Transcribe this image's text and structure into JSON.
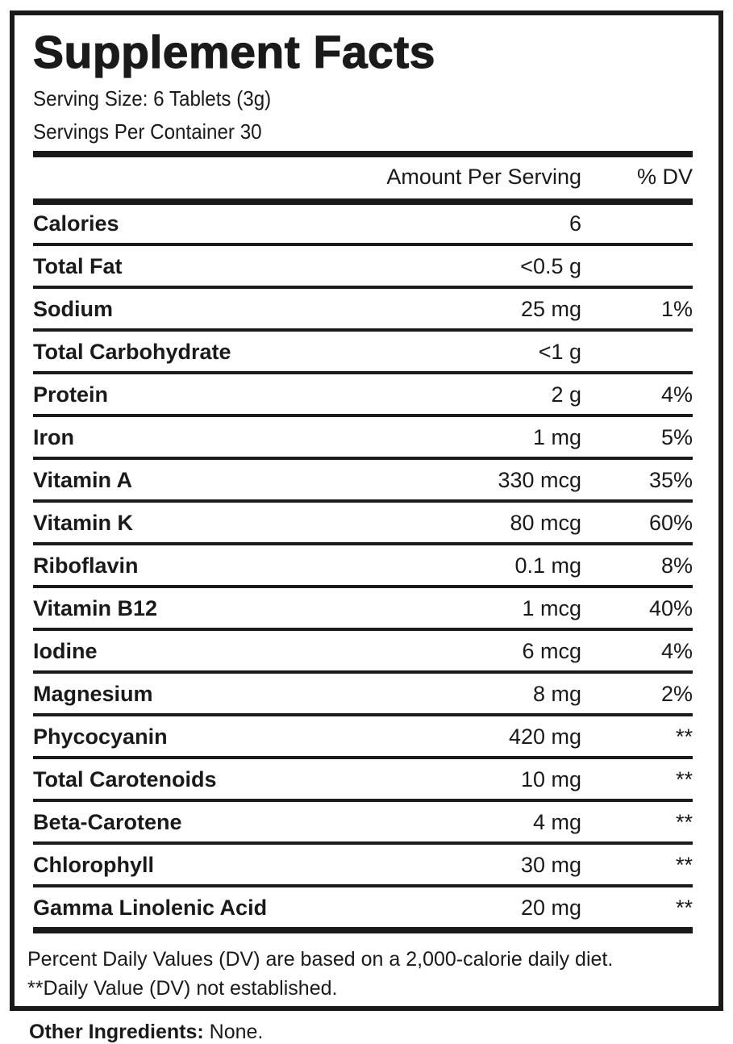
{
  "title": "Supplement Facts",
  "serving_size": "Serving Size: 6 Tablets (3g)",
  "servings_per_container": "Servings Per Container 30",
  "header": {
    "amount": "Amount Per Serving",
    "dv": "% DV"
  },
  "rows": [
    {
      "name": "Calories",
      "amount": "6",
      "dv": ""
    },
    {
      "name": "Total Fat",
      "amount": "<0.5 g",
      "dv": ""
    },
    {
      "name": "Sodium",
      "amount": "25 mg",
      "dv": "1%"
    },
    {
      "name": "Total Carbohydrate",
      "amount": "<1 g",
      "dv": ""
    },
    {
      "name": "Protein",
      "amount": "2 g",
      "dv": "4%"
    },
    {
      "name": "Iron",
      "amount": "1 mg",
      "dv": "5%"
    },
    {
      "name": "Vitamin A",
      "amount": "330 mcg",
      "dv": "35%"
    },
    {
      "name": "Vitamin K",
      "amount": "80 mcg",
      "dv": "60%"
    },
    {
      "name": "Riboflavin",
      "amount": "0.1 mg",
      "dv": "8%"
    },
    {
      "name": "Vitamin B12",
      "amount": "1 mcg",
      "dv": "40%"
    },
    {
      "name": "Iodine",
      "amount": "6 mcg",
      "dv": "4%"
    },
    {
      "name": "Magnesium",
      "amount": "8 mg",
      "dv": "2%"
    },
    {
      "name": "Phycocyanin",
      "amount": "420 mg",
      "dv": "**"
    },
    {
      "name": "Total Carotenoids",
      "amount": "10 mg",
      "dv": "**"
    },
    {
      "name": "Beta-Carotene",
      "amount": "4 mg",
      "dv": "**"
    },
    {
      "name": "Chlorophyll",
      "amount": "30 mg",
      "dv": "**"
    },
    {
      "name": "Gamma Linolenic Acid",
      "amount": "20 mg",
      "dv": "**"
    }
  ],
  "footnotes": [
    "Percent Daily Values (DV) are based on a 2,000-calorie daily diet.",
    "**Daily Value (DV) not established."
  ],
  "other_ingredients": {
    "label": "Other Ingredients:",
    "value": " None."
  }
}
